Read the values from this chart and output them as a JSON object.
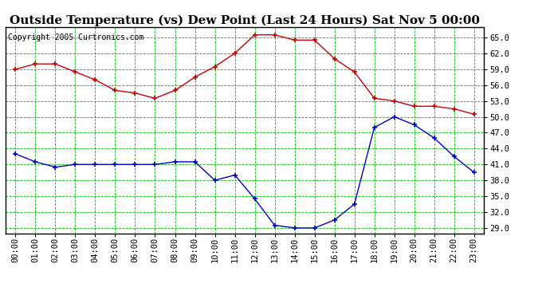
{
  "title": "Outside Temperature (vs) Dew Point (Last 24 Hours) Sat Nov 5 00:00",
  "copyright": "Copyright 2005 Curtronics.com",
  "hours": [
    0,
    1,
    2,
    3,
    4,
    5,
    6,
    7,
    8,
    9,
    10,
    11,
    12,
    13,
    14,
    15,
    16,
    17,
    18,
    19,
    20,
    21,
    22,
    23
  ],
  "temp_red": [
    59.0,
    60.0,
    60.0,
    58.5,
    57.0,
    55.0,
    54.5,
    53.5,
    55.0,
    57.5,
    59.5,
    62.0,
    65.5,
    65.5,
    64.5,
    64.5,
    61.0,
    58.5,
    53.5,
    53.0,
    52.0,
    52.0,
    51.5,
    50.5
  ],
  "dew_blue": [
    43.0,
    41.5,
    40.5,
    41.0,
    41.0,
    41.0,
    41.0,
    41.0,
    41.5,
    41.5,
    38.0,
    39.0,
    34.5,
    29.5,
    29.0,
    29.0,
    30.5,
    33.5,
    48.0,
    50.0,
    48.5,
    46.0,
    42.5,
    39.5
  ],
  "ylim": [
    28.0,
    67.0
  ],
  "yticks": [
    29.0,
    32.0,
    35.0,
    38.0,
    41.0,
    44.0,
    47.0,
    50.0,
    53.0,
    56.0,
    59.0,
    62.0,
    65.0
  ],
  "bg_color": "#ffffff",
  "plot_bg": "#ffffff",
  "grid_color": "#00bb00",
  "temp_color": "#cc0000",
  "dew_color": "#0000cc",
  "title_fontsize": 11,
  "copyright_fontsize": 7,
  "tick_fontsize": 7.5
}
